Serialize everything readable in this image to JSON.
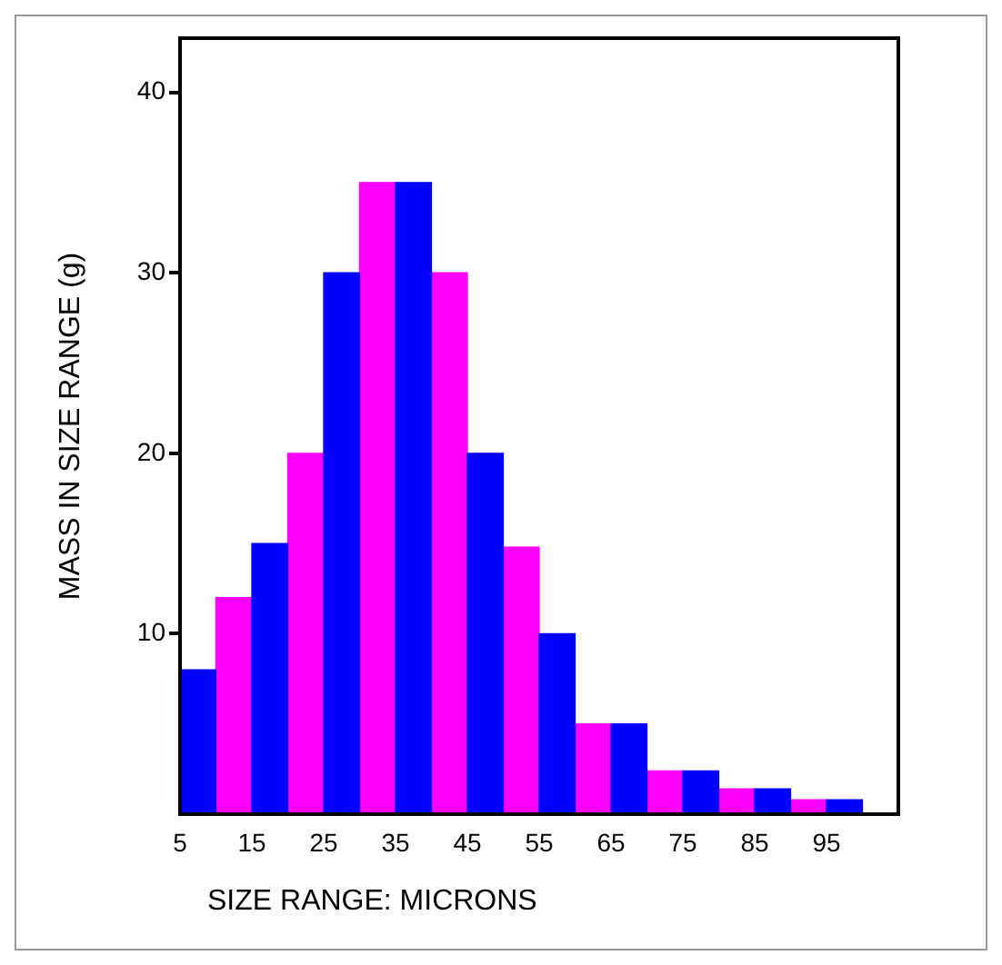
{
  "chart_data": {
    "type": "histogram",
    "xlabel": "SIZE RANGE: MICRONS",
    "ylabel": "MASS IN SIZE RANGE (g)",
    "bins": [
      5,
      10,
      15,
      20,
      25,
      30,
      35,
      40,
      45,
      50,
      55,
      60,
      65,
      70,
      75,
      80,
      85,
      90,
      95,
      100
    ],
    "series": [
      {
        "color": "#0000ff",
        "values": [
          8,
          null,
          15,
          null,
          30,
          null,
          35,
          null,
          20,
          null,
          10,
          null,
          5,
          null,
          2.4,
          null,
          1.4,
          null,
          0.8
        ]
      },
      {
        "color": "#ff00ff",
        "values": [
          null,
          12,
          null,
          20,
          null,
          35,
          null,
          30,
          null,
          14.8,
          null,
          5,
          null,
          2.4,
          null,
          1.4,
          null,
          0.8,
          null
        ]
      }
    ],
    "xlim": [
      5,
      105
    ],
    "ylim": [
      0,
      43
    ],
    "xticks": [
      5,
      15,
      25,
      35,
      45,
      55,
      65,
      75,
      85,
      95
    ],
    "yticks": [
      10,
      20,
      30,
      40
    ],
    "grid": false,
    "legend": false
  }
}
